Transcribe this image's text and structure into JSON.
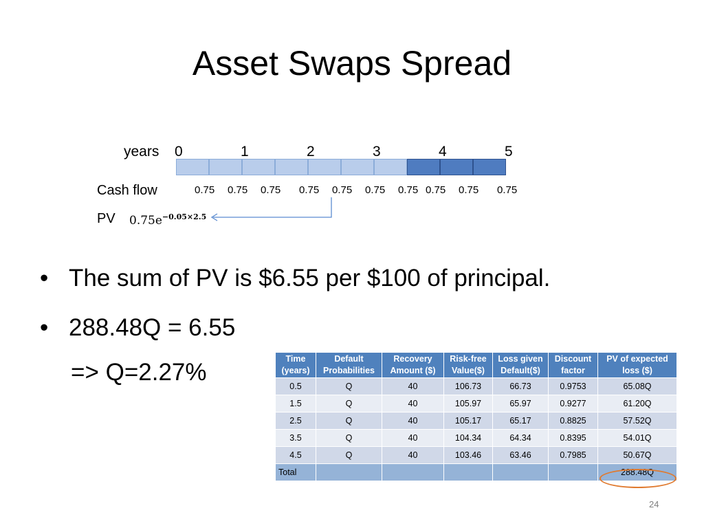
{
  "slide": {
    "title": "Asset Swaps Spread",
    "page_number": "24"
  },
  "timeline": {
    "years_label": "years",
    "year_ticks": [
      "0",
      "1",
      "2",
      "3",
      "4",
      "5"
    ],
    "segments": 10,
    "dark_from_index": 7,
    "colors": {
      "light": "#b9cdeb",
      "dark": "#4f7cc0"
    },
    "cashflow_label": "Cash flow",
    "cashflows": [
      "0.75",
      "0.75",
      "0.75",
      "0.75",
      "0.75",
      "0.75",
      "0.75",
      "0.75",
      "0.75",
      "0.75"
    ],
    "pv_label": "PV",
    "pv_formula_base": "0.75e",
    "pv_formula_exponent": "−0.05×2.5"
  },
  "bullets": [
    {
      "text": "The sum of PV is $6.55 per $100 of principal."
    },
    {
      "text": "288.48Q = 6.55"
    }
  ],
  "result_line": "=> Q=2.27%",
  "table": {
    "headers": [
      [
        "Time",
        "(years)"
      ],
      [
        "Default",
        "Probabilities"
      ],
      [
        "Recovery",
        "Amount ($)"
      ],
      [
        "Risk-free",
        "Value($)"
      ],
      [
        "Loss given",
        "Default($)"
      ],
      [
        "Discount",
        "factor"
      ],
      [
        "PV of expected",
        "loss ($)"
      ]
    ],
    "rows": [
      [
        "0.5",
        "Q",
        "40",
        "106.73",
        "66.73",
        "0.9753",
        "65.08Q"
      ],
      [
        "1.5",
        "Q",
        "40",
        "105.97",
        "65.97",
        "0.9277",
        "61.20Q"
      ],
      [
        "2.5",
        "Q",
        "40",
        "105.17",
        "65.17",
        "0.8825",
        "57.52Q"
      ],
      [
        "3.5",
        "Q",
        "40",
        "104.34",
        "64.34",
        "0.8395",
        "54.01Q"
      ],
      [
        "4.5",
        "Q",
        "40",
        "103.46",
        "63.46",
        "0.7985",
        "50.67Q"
      ]
    ],
    "total_label": "Total",
    "total_value": "288.48Q",
    "highlight_color": "#e07a2f"
  }
}
